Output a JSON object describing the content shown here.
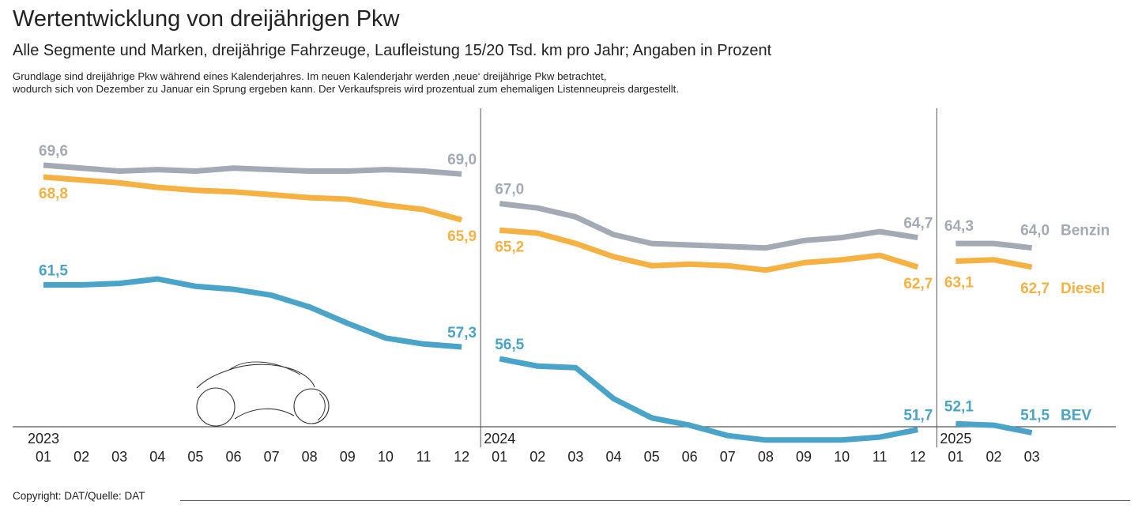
{
  "title": "Wertentwicklung von dreijährigen Pkw",
  "subtitle": "Alle Segmente und Marken, dreijährige Fahrzeuge, Laufleistung 15/20 Tsd. km pro Jahr; Angaben in Prozent",
  "note_line1": "Grundlage sind dreijährige Pkw während eines Kalenderjahres. Im neuen Kalenderjahr werden ‚neue‘ dreijährige Pkw betrachtet,",
  "note_line2": "wodurch sich von Dezember zu Januar ein Sprung ergeben kann. Der Verkaufspreis wird prozentual zum ehemaligen Listenneupreis dargestellt.",
  "copyright": "Copyright: DAT/Quelle: DAT",
  "colors": {
    "Benzin": "#a3aab4",
    "Diesel": "#f5b141",
    "BEV": "#4aa3c8",
    "axis": "#555555"
  },
  "illustration": "car-outline-drawing",
  "chart_data": {
    "type": "line",
    "years": [
      "2023",
      "2024",
      "2025"
    ],
    "categories": [
      "01",
      "02",
      "03",
      "04",
      "05",
      "06",
      "07",
      "08",
      "09",
      "10",
      "11",
      "12",
      "01",
      "02",
      "03",
      "04",
      "05",
      "06",
      "07",
      "08",
      "09",
      "10",
      "11",
      "12",
      "01",
      "02",
      "03"
    ],
    "segments": [
      [
        0,
        11
      ],
      [
        12,
        23
      ],
      [
        24,
        26
      ]
    ],
    "ylim": [
      40,
      72
    ],
    "grid": false,
    "legend": "right-end labels",
    "series": [
      {
        "name": "Benzin",
        "values": [
          69.6,
          69.4,
          69.2,
          69.3,
          69.2,
          69.4,
          69.3,
          69.2,
          69.2,
          69.3,
          69.2,
          69.0,
          67.0,
          66.7,
          66.1,
          64.9,
          64.3,
          64.2,
          64.1,
          64.0,
          64.5,
          64.7,
          65.1,
          64.7,
          64.3,
          64.3,
          64.0
        ],
        "labels": [
          {
            "index": 0,
            "text": "69,6"
          },
          {
            "index": 11,
            "text": "69,0"
          },
          {
            "index": 12,
            "text": "67,0"
          },
          {
            "index": 23,
            "text": "64,7"
          },
          {
            "index": 24,
            "text": "64,3"
          },
          {
            "index": 26,
            "text": "64,0"
          }
        ]
      },
      {
        "name": "Diesel",
        "values": [
          68.8,
          68.6,
          68.4,
          68.1,
          67.9,
          67.8,
          67.6,
          67.4,
          67.3,
          66.9,
          66.6,
          65.9,
          65.2,
          65.0,
          64.3,
          63.4,
          62.8,
          62.9,
          62.8,
          62.5,
          63.0,
          63.2,
          63.5,
          62.7,
          63.1,
          63.2,
          62.7
        ],
        "labels": [
          {
            "index": 0,
            "text": "68,8"
          },
          {
            "index": 11,
            "text": "65,9"
          },
          {
            "index": 12,
            "text": "65,2"
          },
          {
            "index": 23,
            "text": "62,7"
          },
          {
            "index": 24,
            "text": "63,1"
          },
          {
            "index": 26,
            "text": "62,7"
          }
        ]
      },
      {
        "name": "BEV",
        "values": [
          61.5,
          61.5,
          61.6,
          61.9,
          61.4,
          61.2,
          60.8,
          60.0,
          58.9,
          57.9,
          57.5,
          57.3,
          56.5,
          56.0,
          55.9,
          53.8,
          52.5,
          52.0,
          51.3,
          51.0,
          51.0,
          51.0,
          51.2,
          51.7,
          52.1,
          52.0,
          51.5
        ],
        "labels": [
          {
            "index": 0,
            "text": "61,5"
          },
          {
            "index": 11,
            "text": "57,3"
          },
          {
            "index": 12,
            "text": "56,5"
          },
          {
            "index": 23,
            "text": "51,7"
          },
          {
            "index": 24,
            "text": "52,1"
          },
          {
            "index": 26,
            "text": "51,5"
          }
        ]
      }
    ]
  }
}
